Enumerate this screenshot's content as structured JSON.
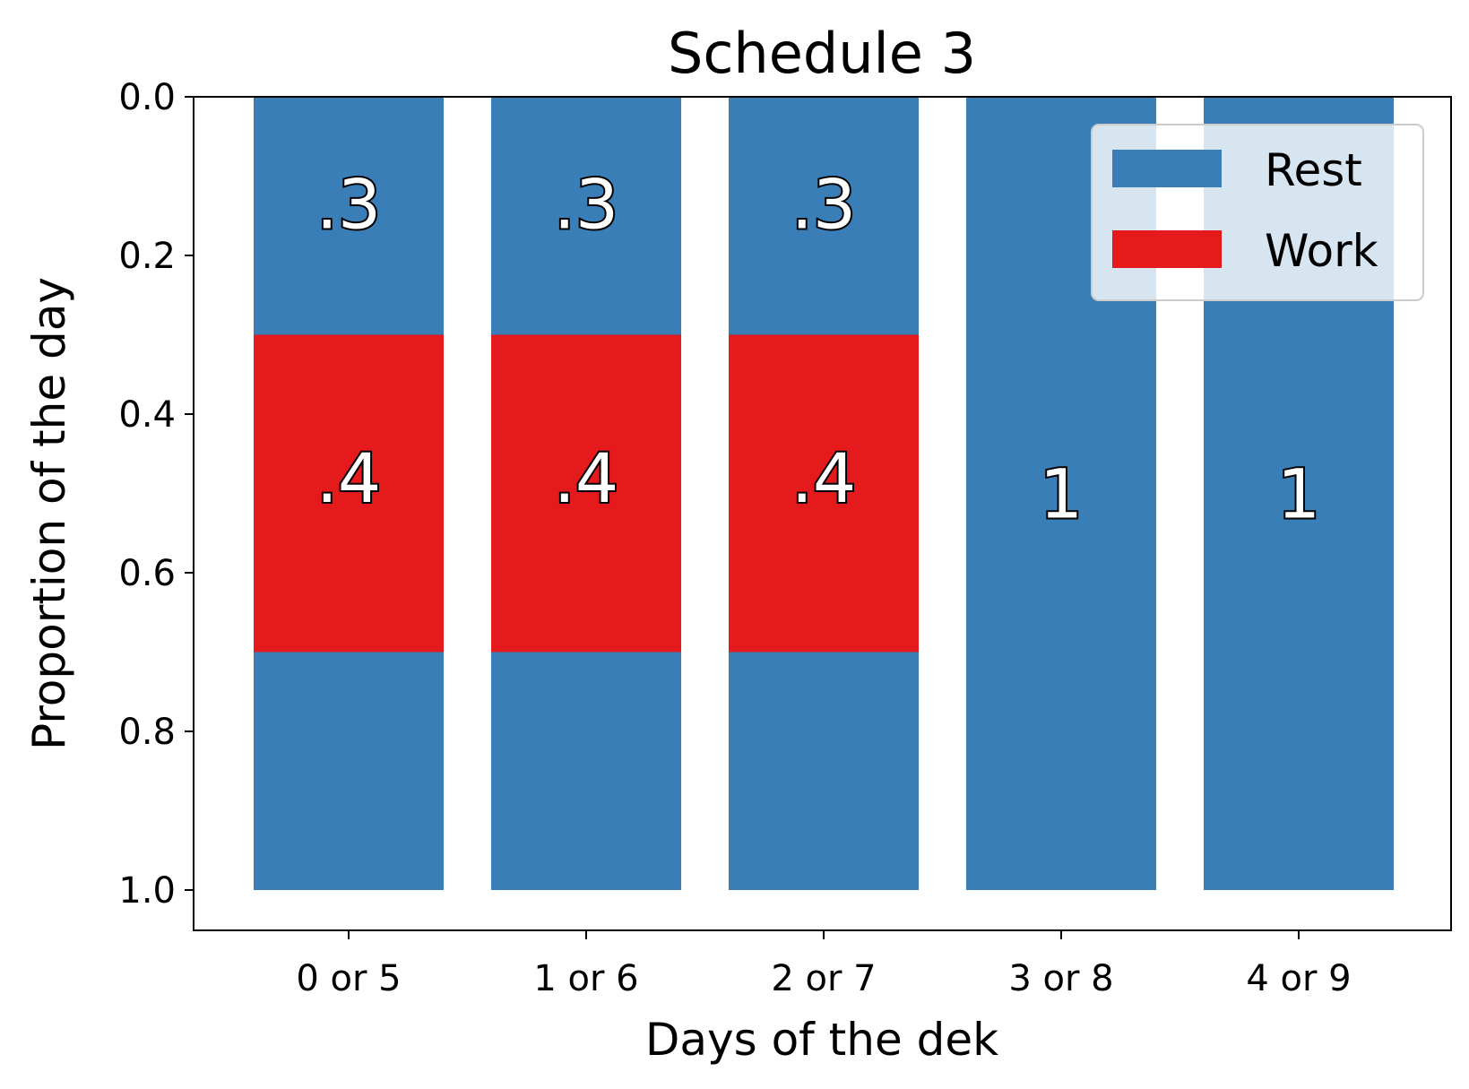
{
  "chart_data": {
    "type": "bar",
    "stacked": true,
    "orientation": "vertical",
    "title": "Schedule 3",
    "xlabel": "Days of the dek",
    "ylabel": "Proportion of the day",
    "categories": [
      "0 or 5",
      "1 or 6",
      "2 or 7",
      "3 or 8",
      "4 or 9"
    ],
    "ylim": [
      0.0,
      1.0
    ],
    "y_inverted": true,
    "yticks": [
      "0.0",
      "0.2",
      "0.4",
      "0.6",
      "0.8",
      "1.0"
    ],
    "segments": [
      [
        {
          "series": "Rest",
          "start": 0.0,
          "end": 0.3,
          "label": ".3"
        },
        {
          "series": "Work",
          "start": 0.3,
          "end": 0.7,
          "label": ".4"
        },
        {
          "series": "Rest",
          "start": 0.7,
          "end": 1.0,
          "label": ""
        }
      ],
      [
        {
          "series": "Rest",
          "start": 0.0,
          "end": 0.3,
          "label": ".3"
        },
        {
          "series": "Work",
          "start": 0.3,
          "end": 0.7,
          "label": ".4"
        },
        {
          "series": "Rest",
          "start": 0.7,
          "end": 1.0,
          "label": ""
        }
      ],
      [
        {
          "series": "Rest",
          "start": 0.0,
          "end": 0.3,
          "label": ".3"
        },
        {
          "series": "Work",
          "start": 0.3,
          "end": 0.7,
          "label": ".4"
        },
        {
          "series": "Rest",
          "start": 0.7,
          "end": 1.0,
          "label": ""
        }
      ],
      [
        {
          "series": "Rest",
          "start": 0.0,
          "end": 1.0,
          "label": "1"
        }
      ],
      [
        {
          "series": "Rest",
          "start": 0.0,
          "end": 1.0,
          "label": "1"
        }
      ]
    ],
    "legend": {
      "position": "top-right",
      "entries": [
        {
          "name": "Rest",
          "color": "#3a7eb8"
        },
        {
          "name": "Work",
          "color": "#e41a1c"
        }
      ]
    },
    "colors": {
      "Rest": "#3a7eb8",
      "Work": "#e41a1c"
    },
    "grid": false
  }
}
